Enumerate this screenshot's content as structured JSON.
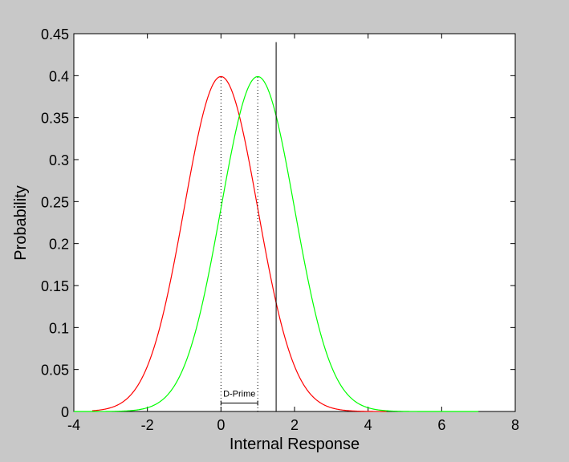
{
  "chart_data": {
    "type": "line",
    "xlabel": "Internal Response",
    "ylabel": "Probability",
    "xlim": [
      -4,
      8
    ],
    "ylim": [
      0,
      0.45
    ],
    "xticks": [
      "-4",
      "-2",
      "0",
      "2",
      "4",
      "6",
      "8"
    ],
    "yticks": [
      "0",
      "0.05",
      "0.1",
      "0.15",
      "0.2",
      "0.25",
      "0.3",
      "0.35",
      "0.4",
      "0.45"
    ],
    "grid": false,
    "series": [
      {
        "distribution": "normal",
        "mean": 0,
        "sd": 1,
        "x_range": [
          -3.5,
          4.5
        ],
        "color": "#ff0000"
      },
      {
        "distribution": "normal",
        "mean": 1,
        "sd": 1,
        "x_range": [
          -4,
          7
        ],
        "color": "#00ff00"
      }
    ],
    "criterion_x": 1.5,
    "annotation": {
      "text": "D-Prime",
      "x_start": 0,
      "x_end": 1,
      "y": 0.01
    }
  }
}
